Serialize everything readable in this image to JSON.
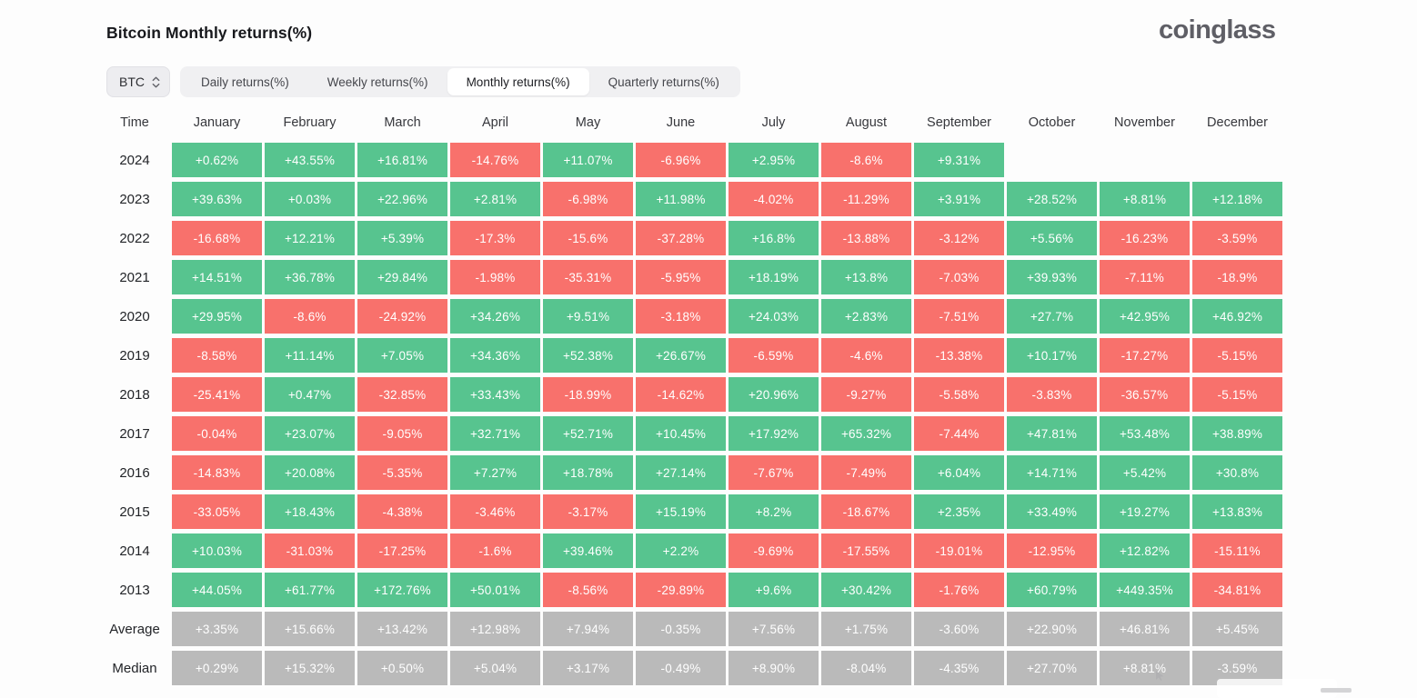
{
  "header": {
    "title": "Bitcoin Monthly returns(%)",
    "logo": "coinglass"
  },
  "controls": {
    "symbol_select": {
      "value": "BTC"
    },
    "tabs": [
      {
        "label": "Daily returns(%)",
        "active": false
      },
      {
        "label": "Weekly returns(%)",
        "active": false
      },
      {
        "label": "Monthly returns(%)",
        "active": true
      },
      {
        "label": "Quarterly returns(%)",
        "active": false
      }
    ]
  },
  "table": {
    "time_header": "Time",
    "months": [
      "January",
      "February",
      "March",
      "April",
      "May",
      "June",
      "July",
      "August",
      "September",
      "October",
      "November",
      "December"
    ],
    "rows": [
      {
        "label": "2024",
        "type": "year",
        "values": [
          "+0.62%",
          "+43.55%",
          "+16.81%",
          "-14.76%",
          "+11.07%",
          "-6.96%",
          "+2.95%",
          "-8.6%",
          "+9.31%",
          "",
          "",
          ""
        ]
      },
      {
        "label": "2023",
        "type": "year",
        "values": [
          "+39.63%",
          "+0.03%",
          "+22.96%",
          "+2.81%",
          "-6.98%",
          "+11.98%",
          "-4.02%",
          "-11.29%",
          "+3.91%",
          "+28.52%",
          "+8.81%",
          "+12.18%"
        ]
      },
      {
        "label": "2022",
        "type": "year",
        "values": [
          "-16.68%",
          "+12.21%",
          "+5.39%",
          "-17.3%",
          "-15.6%",
          "-37.28%",
          "+16.8%",
          "-13.88%",
          "-3.12%",
          "+5.56%",
          "-16.23%",
          "-3.59%"
        ]
      },
      {
        "label": "2021",
        "type": "year",
        "values": [
          "+14.51%",
          "+36.78%",
          "+29.84%",
          "-1.98%",
          "-35.31%",
          "-5.95%",
          "+18.19%",
          "+13.8%",
          "-7.03%",
          "+39.93%",
          "-7.11%",
          "-18.9%"
        ]
      },
      {
        "label": "2020",
        "type": "year",
        "values": [
          "+29.95%",
          "-8.6%",
          "-24.92%",
          "+34.26%",
          "+9.51%",
          "-3.18%",
          "+24.03%",
          "+2.83%",
          "-7.51%",
          "+27.7%",
          "+42.95%",
          "+46.92%"
        ]
      },
      {
        "label": "2019",
        "type": "year",
        "values": [
          "-8.58%",
          "+11.14%",
          "+7.05%",
          "+34.36%",
          "+52.38%",
          "+26.67%",
          "-6.59%",
          "-4.6%",
          "-13.38%",
          "+10.17%",
          "-17.27%",
          "-5.15%"
        ]
      },
      {
        "label": "2018",
        "type": "year",
        "values": [
          "-25.41%",
          "+0.47%",
          "-32.85%",
          "+33.43%",
          "-18.99%",
          "-14.62%",
          "+20.96%",
          "-9.27%",
          "-5.58%",
          "-3.83%",
          "-36.57%",
          "-5.15%"
        ]
      },
      {
        "label": "2017",
        "type": "year",
        "values": [
          "-0.04%",
          "+23.07%",
          "-9.05%",
          "+32.71%",
          "+52.71%",
          "+10.45%",
          "+17.92%",
          "+65.32%",
          "-7.44%",
          "+47.81%",
          "+53.48%",
          "+38.89%"
        ]
      },
      {
        "label": "2016",
        "type": "year",
        "values": [
          "-14.83%",
          "+20.08%",
          "-5.35%",
          "+7.27%",
          "+18.78%",
          "+27.14%",
          "-7.67%",
          "-7.49%",
          "+6.04%",
          "+14.71%",
          "+5.42%",
          "+30.8%"
        ]
      },
      {
        "label": "2015",
        "type": "year",
        "values": [
          "-33.05%",
          "+18.43%",
          "-4.38%",
          "-3.46%",
          "-3.17%",
          "+15.19%",
          "+8.2%",
          "-18.67%",
          "+2.35%",
          "+33.49%",
          "+19.27%",
          "+13.83%"
        ]
      },
      {
        "label": "2014",
        "type": "year",
        "values": [
          "+10.03%",
          "-31.03%",
          "-17.25%",
          "-1.6%",
          "+39.46%",
          "+2.2%",
          "-9.69%",
          "-17.55%",
          "-19.01%",
          "-12.95%",
          "+12.82%",
          "-15.11%"
        ]
      },
      {
        "label": "2013",
        "type": "year",
        "values": [
          "+44.05%",
          "+61.77%",
          "+172.76%",
          "+50.01%",
          "-8.56%",
          "-29.89%",
          "+9.6%",
          "+30.42%",
          "-1.76%",
          "+60.79%",
          "+449.35%",
          "-34.81%"
        ]
      },
      {
        "label": "Average",
        "type": "summary",
        "values": [
          "+3.35%",
          "+15.66%",
          "+13.42%",
          "+12.98%",
          "+7.94%",
          "-0.35%",
          "+7.56%",
          "+1.75%",
          "-3.60%",
          "+22.90%",
          "+46.81%",
          "+5.45%"
        ]
      },
      {
        "label": "Median",
        "type": "summary",
        "values": [
          "+0.29%",
          "+15.32%",
          "+0.50%",
          "+5.04%",
          "+3.17%",
          "-0.49%",
          "+8.90%",
          "-8.04%",
          "-4.35%",
          "+27.70%",
          "+8.81%",
          "-3.59%"
        ]
      }
    ]
  },
  "colors": {
    "positive": "#57c48f",
    "negative": "#f8716c",
    "summary": "#bababa"
  }
}
